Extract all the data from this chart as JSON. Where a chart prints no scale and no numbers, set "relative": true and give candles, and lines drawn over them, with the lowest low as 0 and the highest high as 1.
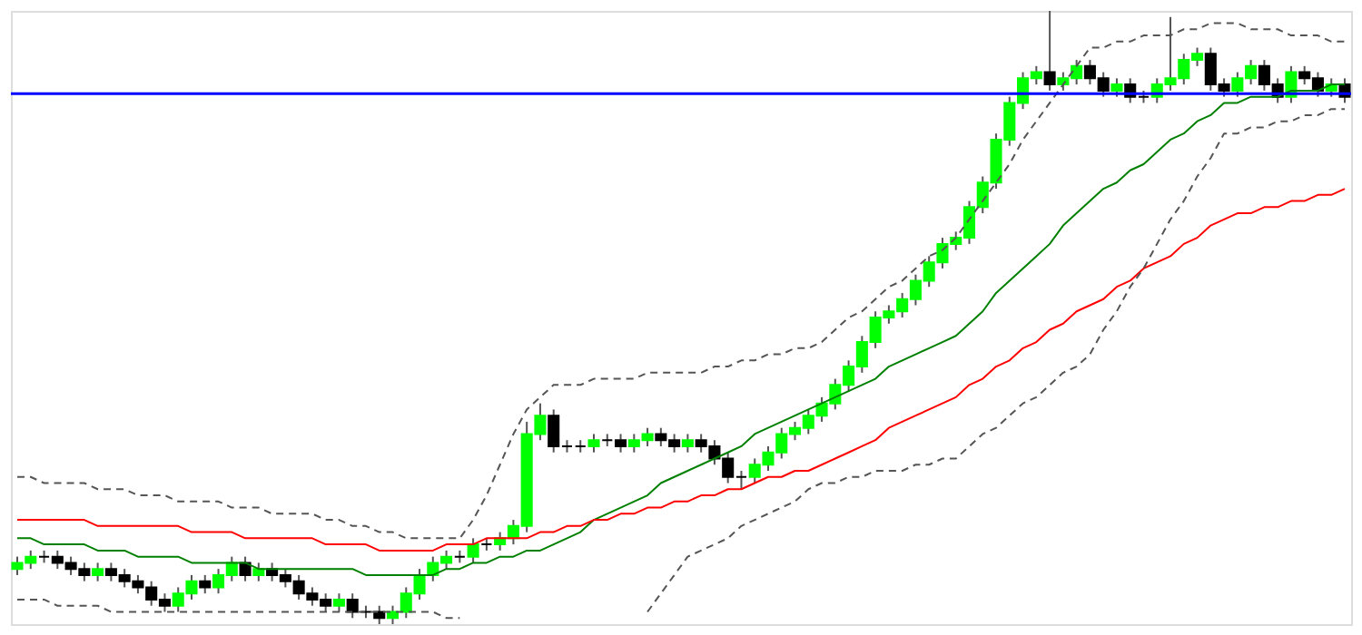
{
  "chart_data": {
    "type": "candlestick",
    "relative": true,
    "tick_labels": false,
    "grid": false,
    "categories": [
      null,
      null,
      null,
      null,
      null,
      null,
      null,
      null,
      null,
      null,
      null,
      null,
      null,
      null,
      null,
      null,
      null,
      null,
      null,
      null,
      null,
      null,
      null,
      null,
      null,
      null,
      null,
      null,
      null,
      null,
      null,
      null,
      null,
      null,
      null,
      null,
      null,
      null,
      null,
      null,
      null,
      null,
      null,
      null,
      null,
      null,
      null,
      null,
      null,
      null,
      null,
      null,
      null,
      null,
      null,
      null,
      null,
      null,
      null,
      null,
      null,
      null,
      null,
      null,
      null,
      null,
      null,
      null,
      null,
      null,
      null,
      null,
      null,
      null,
      null,
      null,
      null,
      null,
      null,
      null,
      null,
      null,
      null,
      null,
      null,
      null,
      null,
      null,
      null,
      null,
      null,
      null,
      null,
      null,
      null,
      null,
      null,
      null,
      null,
      null
    ],
    "ohlc": [
      [
        0.09,
        0.11,
        0.08,
        0.1
      ],
      [
        0.1,
        0.12,
        0.09,
        0.11
      ],
      [
        0.11,
        0.12,
        0.1,
        0.11
      ],
      [
        0.11,
        0.12,
        0.09,
        0.1
      ],
      [
        0.1,
        0.11,
        0.08,
        0.09
      ],
      [
        0.09,
        0.1,
        0.07,
        0.08
      ],
      [
        0.08,
        0.1,
        0.07,
        0.09
      ],
      [
        0.09,
        0.1,
        0.07,
        0.08
      ],
      [
        0.08,
        0.09,
        0.06,
        0.07
      ],
      [
        0.07,
        0.08,
        0.05,
        0.06
      ],
      [
        0.06,
        0.07,
        0.03,
        0.04
      ],
      [
        0.04,
        0.05,
        0.02,
        0.03
      ],
      [
        0.03,
        0.06,
        0.02,
        0.05
      ],
      [
        0.05,
        0.08,
        0.04,
        0.07
      ],
      [
        0.07,
        0.08,
        0.05,
        0.06
      ],
      [
        0.06,
        0.09,
        0.05,
        0.08
      ],
      [
        0.08,
        0.11,
        0.07,
        0.1
      ],
      [
        0.1,
        0.11,
        0.07,
        0.08
      ],
      [
        0.08,
        0.1,
        0.07,
        0.09
      ],
      [
        0.09,
        0.1,
        0.07,
        0.08
      ],
      [
        0.08,
        0.09,
        0.06,
        0.07
      ],
      [
        0.07,
        0.08,
        0.04,
        0.05
      ],
      [
        0.05,
        0.06,
        0.03,
        0.04
      ],
      [
        0.04,
        0.05,
        0.02,
        0.03
      ],
      [
        0.03,
        0.05,
        0.02,
        0.04
      ],
      [
        0.04,
        0.05,
        0.01,
        0.02
      ],
      [
        0.02,
        0.03,
        0.01,
        0.02
      ],
      [
        0.02,
        0.03,
        0.0,
        0.01
      ],
      [
        0.01,
        0.03,
        0.0,
        0.02
      ],
      [
        0.02,
        0.06,
        0.01,
        0.05
      ],
      [
        0.05,
        0.09,
        0.04,
        0.08
      ],
      [
        0.08,
        0.11,
        0.07,
        0.1
      ],
      [
        0.1,
        0.12,
        0.09,
        0.11
      ],
      [
        0.11,
        0.12,
        0.1,
        0.11
      ],
      [
        0.11,
        0.14,
        0.1,
        0.13
      ],
      [
        0.13,
        0.14,
        0.12,
        0.13
      ],
      [
        0.13,
        0.15,
        0.12,
        0.14
      ],
      [
        0.14,
        0.17,
        0.13,
        0.16
      ],
      [
        0.16,
        0.33,
        0.15,
        0.31
      ],
      [
        0.31,
        0.36,
        0.3,
        0.34
      ],
      [
        0.34,
        0.35,
        0.28,
        0.29
      ],
      [
        0.29,
        0.3,
        0.28,
        0.29
      ],
      [
        0.29,
        0.3,
        0.28,
        0.29
      ],
      [
        0.29,
        0.31,
        0.28,
        0.3
      ],
      [
        0.3,
        0.31,
        0.29,
        0.3
      ],
      [
        0.3,
        0.31,
        0.28,
        0.29
      ],
      [
        0.29,
        0.31,
        0.28,
        0.3
      ],
      [
        0.3,
        0.32,
        0.29,
        0.31
      ],
      [
        0.31,
        0.32,
        0.29,
        0.3
      ],
      [
        0.3,
        0.31,
        0.28,
        0.29
      ],
      [
        0.29,
        0.31,
        0.28,
        0.3
      ],
      [
        0.3,
        0.31,
        0.28,
        0.29
      ],
      [
        0.29,
        0.3,
        0.26,
        0.27
      ],
      [
        0.27,
        0.28,
        0.23,
        0.24
      ],
      [
        0.24,
        0.25,
        0.22,
        0.24
      ],
      [
        0.24,
        0.27,
        0.23,
        0.26
      ],
      [
        0.26,
        0.29,
        0.25,
        0.28
      ],
      [
        0.28,
        0.32,
        0.27,
        0.31
      ],
      [
        0.31,
        0.33,
        0.3,
        0.32
      ],
      [
        0.32,
        0.35,
        0.31,
        0.34
      ],
      [
        0.34,
        0.37,
        0.33,
        0.36
      ],
      [
        0.36,
        0.4,
        0.35,
        0.39
      ],
      [
        0.39,
        0.43,
        0.38,
        0.42
      ],
      [
        0.42,
        0.47,
        0.41,
        0.46
      ],
      [
        0.46,
        0.51,
        0.45,
        0.5
      ],
      [
        0.5,
        0.52,
        0.49,
        0.51
      ],
      [
        0.51,
        0.54,
        0.5,
        0.53
      ],
      [
        0.53,
        0.57,
        0.52,
        0.56
      ],
      [
        0.56,
        0.6,
        0.55,
        0.59
      ],
      [
        0.59,
        0.63,
        0.58,
        0.62
      ],
      [
        0.62,
        0.64,
        0.61,
        0.63
      ],
      [
        0.63,
        0.69,
        0.62,
        0.68
      ],
      [
        0.68,
        0.73,
        0.67,
        0.72
      ],
      [
        0.72,
        0.8,
        0.71,
        0.79
      ],
      [
        0.79,
        0.86,
        0.78,
        0.85
      ],
      [
        0.85,
        0.9,
        0.84,
        0.89
      ],
      [
        0.89,
        0.91,
        0.88,
        0.9
      ],
      [
        0.9,
        1.0,
        0.87,
        0.88
      ],
      [
        0.88,
        0.9,
        0.87,
        0.89
      ],
      [
        0.89,
        0.92,
        0.88,
        0.91
      ],
      [
        0.91,
        0.92,
        0.88,
        0.89
      ],
      [
        0.89,
        0.9,
        0.86,
        0.87
      ],
      [
        0.87,
        0.89,
        0.86,
        0.88
      ],
      [
        0.88,
        0.89,
        0.85,
        0.86
      ],
      [
        0.86,
        0.87,
        0.85,
        0.86
      ],
      [
        0.86,
        0.89,
        0.85,
        0.88
      ],
      [
        0.88,
        0.99,
        0.87,
        0.89
      ],
      [
        0.89,
        0.93,
        0.88,
        0.92
      ],
      [
        0.92,
        0.94,
        0.91,
        0.93
      ],
      [
        0.93,
        0.94,
        0.87,
        0.88
      ],
      [
        0.88,
        0.89,
        0.86,
        0.87
      ],
      [
        0.87,
        0.9,
        0.86,
        0.89
      ],
      [
        0.89,
        0.92,
        0.88,
        0.91
      ],
      [
        0.91,
        0.92,
        0.87,
        0.88
      ],
      [
        0.88,
        0.89,
        0.85,
        0.86
      ],
      [
        0.86,
        0.91,
        0.85,
        0.9
      ],
      [
        0.9,
        0.91,
        0.88,
        0.89
      ],
      [
        0.89,
        0.9,
        0.86,
        0.87
      ],
      [
        0.87,
        0.89,
        0.86,
        0.88
      ],
      [
        0.88,
        0.89,
        0.85,
        0.86
      ]
    ],
    "colors": [
      "#00ff00",
      "#00ff00",
      "#000000",
      "#000000",
      "#000000",
      "#000000",
      "#00ff00",
      "#000000",
      "#000000",
      "#000000",
      "#000000",
      "#000000",
      "#00ff00",
      "#00ff00",
      "#000000",
      "#00ff00",
      "#00ff00",
      "#000000",
      "#00ff00",
      "#000000",
      "#000000",
      "#000000",
      "#000000",
      "#000000",
      "#00ff00",
      "#000000",
      "#000000",
      "#000000",
      "#00ff00",
      "#00ff00",
      "#00ff00",
      "#00ff00",
      "#00ff00",
      "#000000",
      "#00ff00",
      "#000000",
      "#00ff00",
      "#00ff00",
      "#00ff00",
      "#00ff00",
      "#000000",
      "#000000",
      "#000000",
      "#00ff00",
      "#000000",
      "#000000",
      "#00ff00",
      "#00ff00",
      "#000000",
      "#000000",
      "#00ff00",
      "#000000",
      "#000000",
      "#000000",
      "#000000",
      "#00ff00",
      "#00ff00",
      "#00ff00",
      "#00ff00",
      "#00ff00",
      "#00ff00",
      "#00ff00",
      "#00ff00",
      "#00ff00",
      "#00ff00",
      "#00ff00",
      "#00ff00",
      "#00ff00",
      "#00ff00",
      "#00ff00",
      "#00ff00",
      "#00ff00",
      "#00ff00",
      "#00ff00",
      "#00ff00",
      "#00ff00",
      "#00ff00",
      "#000000",
      "#00ff00",
      "#00ff00",
      "#000000",
      "#000000",
      "#00ff00",
      "#000000",
      "#000000",
      "#00ff00",
      "#00ff00",
      "#00ff00",
      "#00ff00",
      "#000000",
      "#000000",
      "#00ff00",
      "#00ff00",
      "#000000",
      "#000000",
      "#00ff00",
      "#000000",
      "#000000",
      "#00ff00",
      "#000000"
    ],
    "series": [
      {
        "type": "line",
        "color": "#008000",
        "line_style": "solid",
        "values": [
          0.14,
          0.14,
          0.13,
          0.13,
          0.13,
          0.13,
          0.12,
          0.12,
          0.12,
          0.11,
          0.11,
          0.11,
          0.11,
          0.1,
          0.1,
          0.1,
          0.1,
          0.1,
          0.09,
          0.09,
          0.09,
          0.09,
          0.09,
          0.09,
          0.09,
          0.09,
          0.08,
          0.08,
          0.08,
          0.08,
          0.08,
          0.08,
          0.09,
          0.09,
          0.1,
          0.1,
          0.11,
          0.11,
          0.12,
          0.12,
          0.13,
          0.14,
          0.15,
          0.17,
          0.18,
          0.19,
          0.2,
          0.21,
          0.23,
          0.24,
          0.25,
          0.26,
          0.27,
          0.28,
          0.29,
          0.31,
          0.32,
          0.33,
          0.34,
          0.35,
          0.36,
          0.37,
          0.38,
          0.39,
          0.4,
          0.42,
          0.43,
          0.44,
          0.45,
          0.46,
          0.47,
          0.49,
          0.51,
          0.54,
          0.56,
          0.58,
          0.6,
          0.62,
          0.65,
          0.67,
          0.69,
          0.71,
          0.72,
          0.74,
          0.75,
          0.77,
          0.79,
          0.8,
          0.82,
          0.83,
          0.85,
          0.85,
          0.86,
          0.86,
          0.86,
          0.87,
          0.87,
          0.87,
          0.88,
          0.88
        ]
      },
      {
        "type": "line",
        "color": "#ff0000",
        "line_style": "solid",
        "values": [
          0.17,
          0.17,
          0.17,
          0.17,
          0.17,
          0.17,
          0.16,
          0.16,
          0.16,
          0.16,
          0.16,
          0.16,
          0.16,
          0.15,
          0.15,
          0.15,
          0.15,
          0.14,
          0.14,
          0.14,
          0.14,
          0.14,
          0.14,
          0.13,
          0.13,
          0.13,
          0.13,
          0.12,
          0.12,
          0.12,
          0.12,
          0.12,
          0.13,
          0.13,
          0.13,
          0.14,
          0.14,
          0.14,
          0.14,
          0.15,
          0.15,
          0.16,
          0.16,
          0.17,
          0.17,
          0.18,
          0.18,
          0.19,
          0.19,
          0.2,
          0.2,
          0.21,
          0.21,
          0.22,
          0.22,
          0.23,
          0.24,
          0.24,
          0.25,
          0.25,
          0.26,
          0.27,
          0.28,
          0.29,
          0.3,
          0.32,
          0.33,
          0.34,
          0.35,
          0.36,
          0.37,
          0.39,
          0.4,
          0.42,
          0.43,
          0.45,
          0.46,
          0.48,
          0.49,
          0.51,
          0.52,
          0.53,
          0.55,
          0.56,
          0.58,
          0.59,
          0.6,
          0.62,
          0.63,
          0.65,
          0.66,
          0.67,
          0.67,
          0.68,
          0.68,
          0.69,
          0.69,
          0.7,
          0.7,
          0.71
        ]
      },
      {
        "type": "line",
        "color": "#555555",
        "line_style": "dashed",
        "values": [
          0.24,
          0.24,
          0.23,
          0.23,
          0.23,
          0.23,
          0.22,
          0.22,
          0.22,
          0.21,
          0.21,
          0.21,
          0.2,
          0.2,
          0.2,
          0.2,
          0.19,
          0.19,
          0.19,
          0.18,
          0.18,
          0.18,
          0.18,
          0.17,
          0.17,
          0.16,
          0.16,
          0.15,
          0.15,
          0.14,
          0.14,
          0.14,
          0.14,
          0.14,
          0.17,
          0.21,
          0.26,
          0.31,
          0.35,
          0.37,
          0.39,
          0.39,
          0.39,
          0.4,
          0.4,
          0.4,
          0.4,
          0.41,
          0.41,
          0.41,
          0.41,
          0.41,
          0.42,
          0.42,
          0.43,
          0.43,
          0.44,
          0.44,
          0.45,
          0.45,
          0.46,
          0.48,
          0.5,
          0.51,
          0.53,
          0.55,
          0.56,
          0.58,
          0.6,
          0.61,
          0.63,
          0.66,
          0.69,
          0.72,
          0.75,
          0.79,
          0.82,
          0.85,
          0.88,
          0.91,
          0.94,
          0.94,
          0.95,
          0.95,
          0.96,
          0.96,
          0.96,
          0.97,
          0.97,
          0.98,
          0.98,
          0.98,
          0.97,
          0.97,
          0.97,
          0.96,
          0.96,
          0.96,
          0.95,
          0.95
        ]
      },
      {
        "type": "line",
        "color": "#555555",
        "line_style": "dashed",
        "values": [
          0.04,
          0.04,
          0.04,
          0.03,
          0.03,
          0.03,
          0.03,
          0.02,
          0.02,
          0.02,
          0.02,
          0.02,
          0.02,
          0.02,
          0.02,
          0.02,
          0.02,
          0.02,
          0.02,
          0.02,
          0.02,
          0.02,
          0.02,
          0.02,
          0.02,
          0.02,
          0.02,
          0.02,
          0.02,
          0.02,
          0.02,
          0.02,
          0.01,
          0.01,
          null,
          null,
          null,
          null,
          null,
          null,
          null,
          null,
          null,
          null,
          null,
          null,
          null,
          0.02,
          0.05,
          0.08,
          0.11,
          0.12,
          0.13,
          0.14,
          0.16,
          0.17,
          0.18,
          0.19,
          0.2,
          0.22,
          0.23,
          0.23,
          0.24,
          0.24,
          0.25,
          0.25,
          0.25,
          0.26,
          0.26,
          0.27,
          0.27,
          0.29,
          0.31,
          0.32,
          0.34,
          0.36,
          0.37,
          0.39,
          0.41,
          0.42,
          0.44,
          0.48,
          0.51,
          0.55,
          0.58,
          0.62,
          0.66,
          0.69,
          0.73,
          0.76,
          0.8,
          0.8,
          0.81,
          0.81,
          0.82,
          0.82,
          0.83,
          0.83,
          0.84,
          0.84
        ]
      }
    ],
    "ref_lines": [
      {
        "axis": "y",
        "value": 0.865,
        "color": "#0000ff",
        "line_style": "solid"
      }
    ]
  }
}
